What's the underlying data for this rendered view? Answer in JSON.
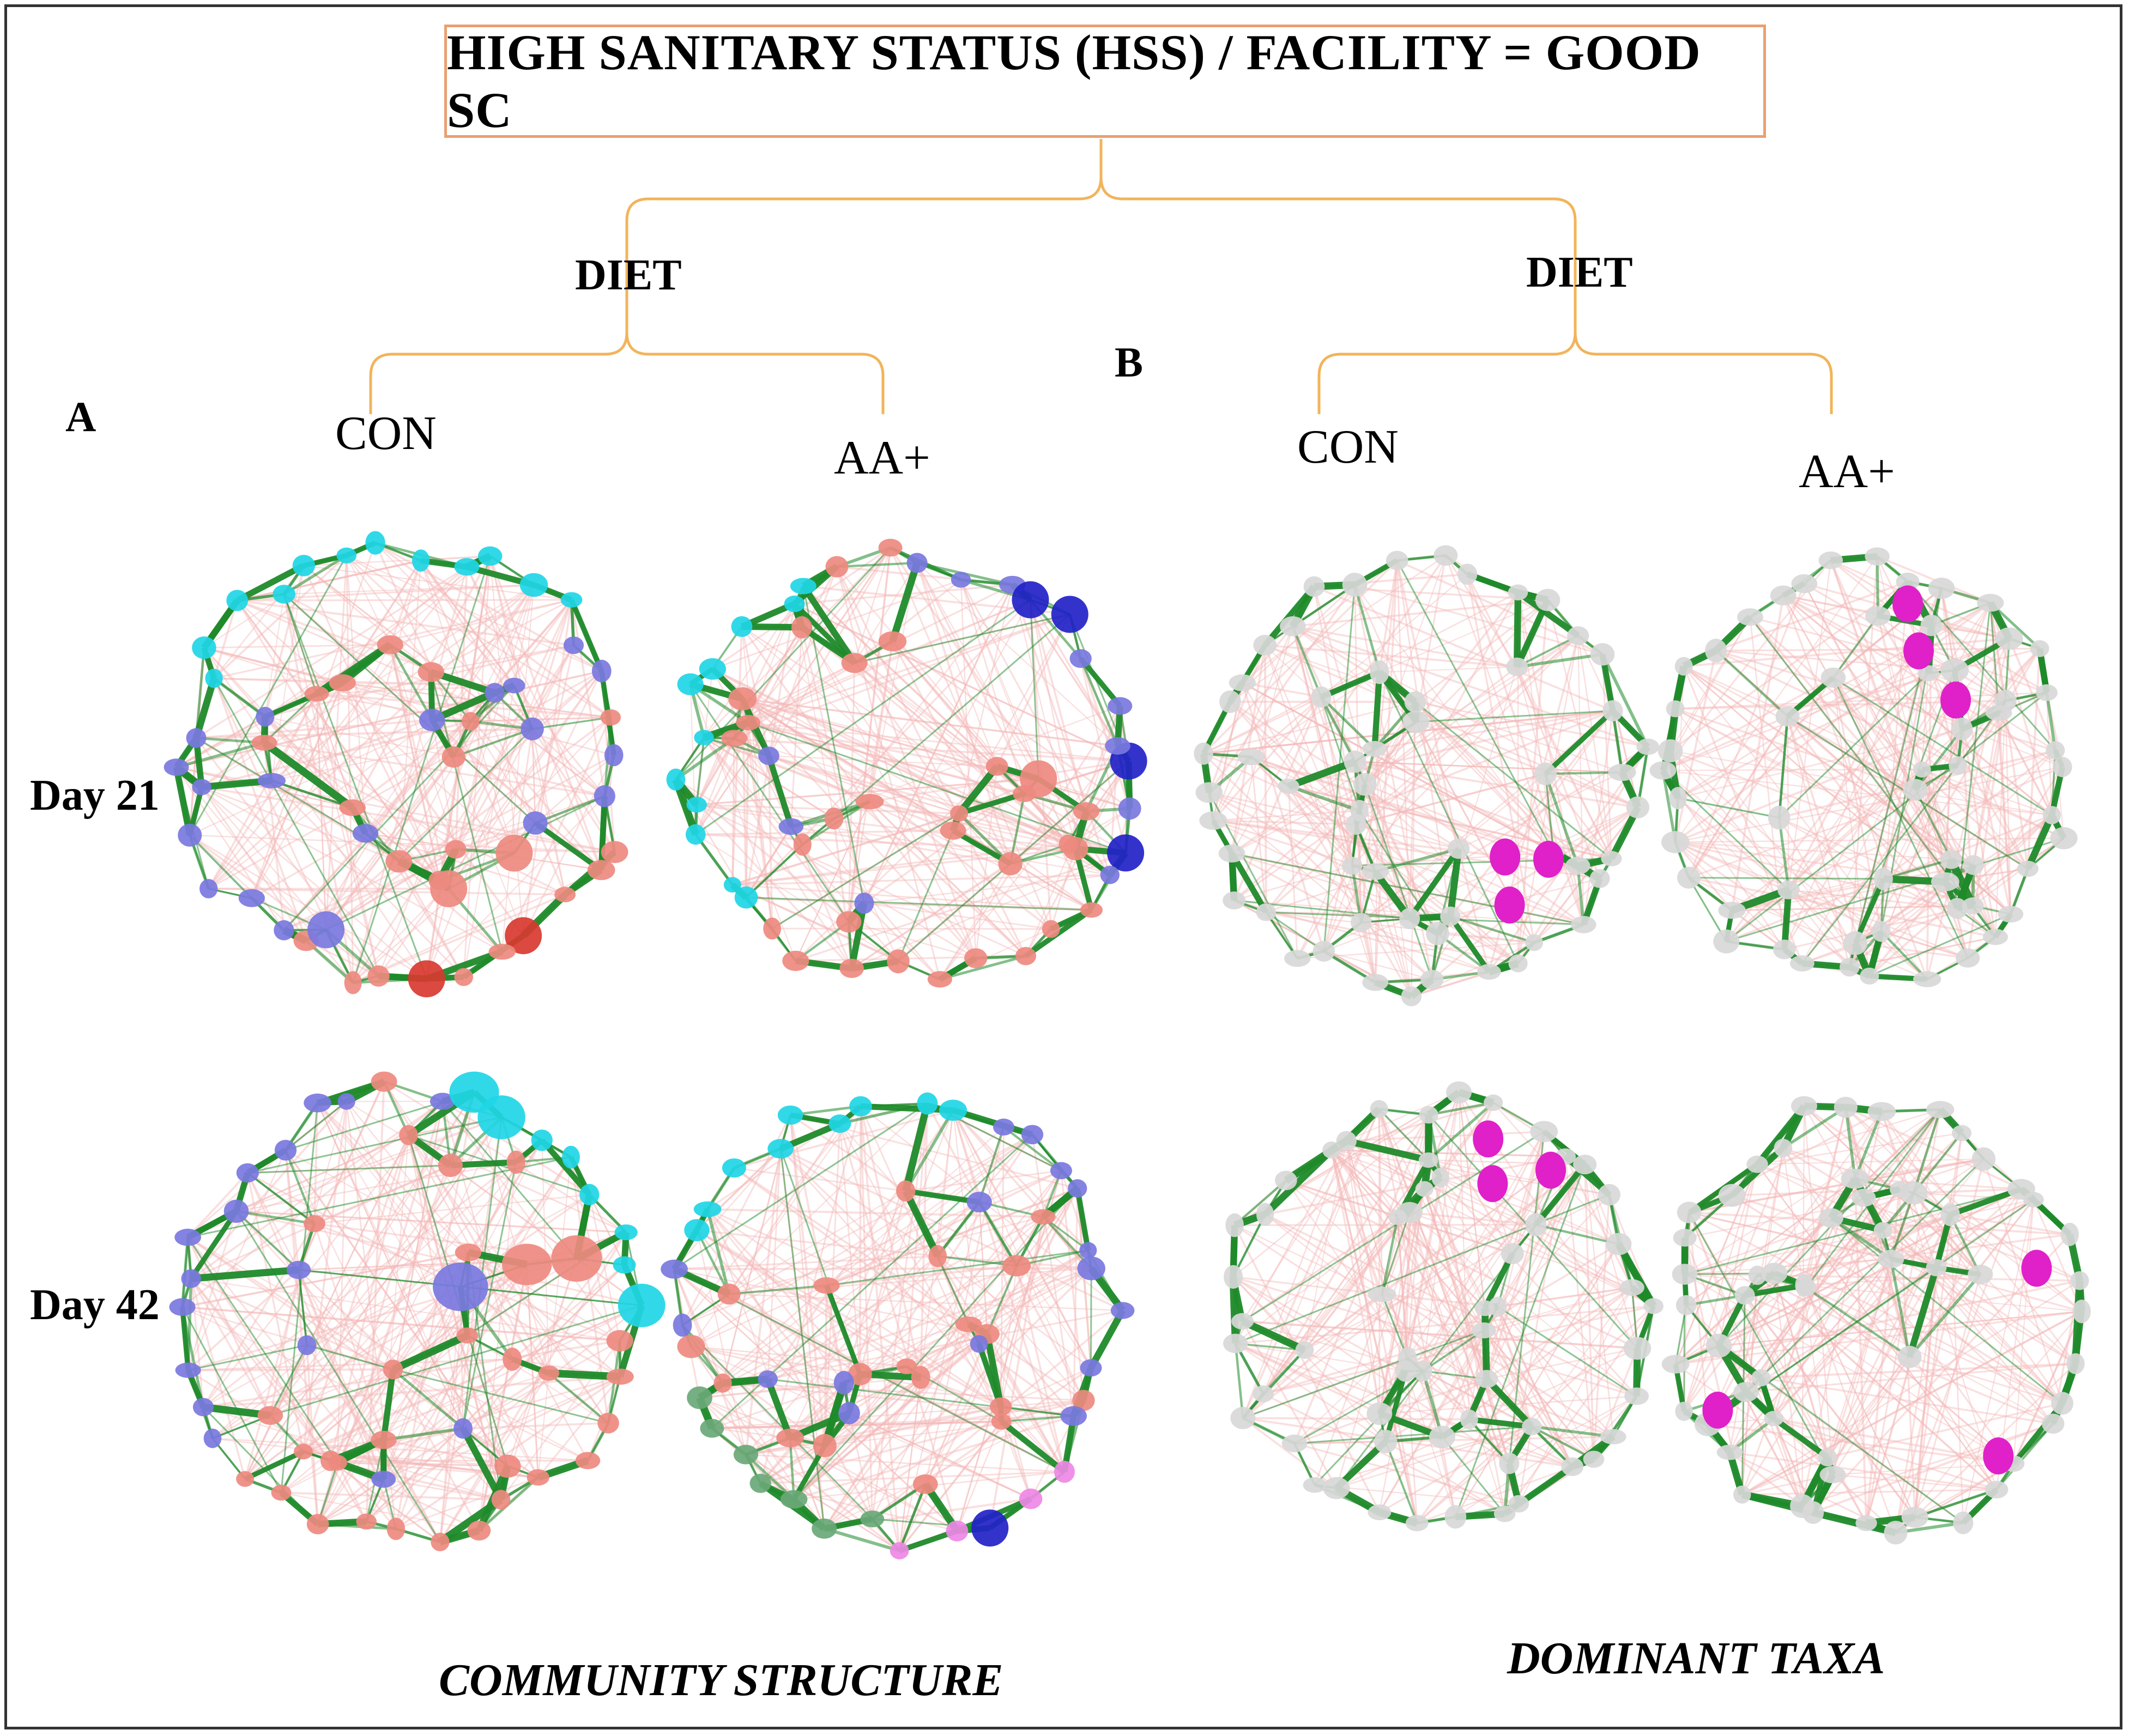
{
  "title": "HIGH SANITARY STATUS (HSS) / FACILITY = GOOD SC",
  "panels": {
    "a_label": "A",
    "b_label": "B"
  },
  "factor_left": "DIET",
  "factor_right": "DIET",
  "groups": {
    "a_con": "CON",
    "a_aa": "AA+",
    "b_con": "CON",
    "b_aa": "AA+"
  },
  "days": {
    "d21": "Day 21",
    "d42": "Day 42"
  },
  "captions": {
    "community": "COMMUNITY STRUCTURE",
    "dominant": "DOMINANT TAXA"
  },
  "colors": {
    "bracket": "#f2b45a",
    "title_border": "#e8a070",
    "edge_positive": "#1f8a2a",
    "edge_negative": "#f4b8b8",
    "node_cyan": "#1fd6e6",
    "node_blue": "#7a78e0",
    "node_dark_blue": "#2222c8",
    "node_red": "#ee8a80",
    "node_dark_red": "#d83a30",
    "node_green": "#6aa878",
    "node_pink": "#ee88e6",
    "node_gray": "#d8d8d8",
    "node_magenta": "#e020c8"
  }
}
